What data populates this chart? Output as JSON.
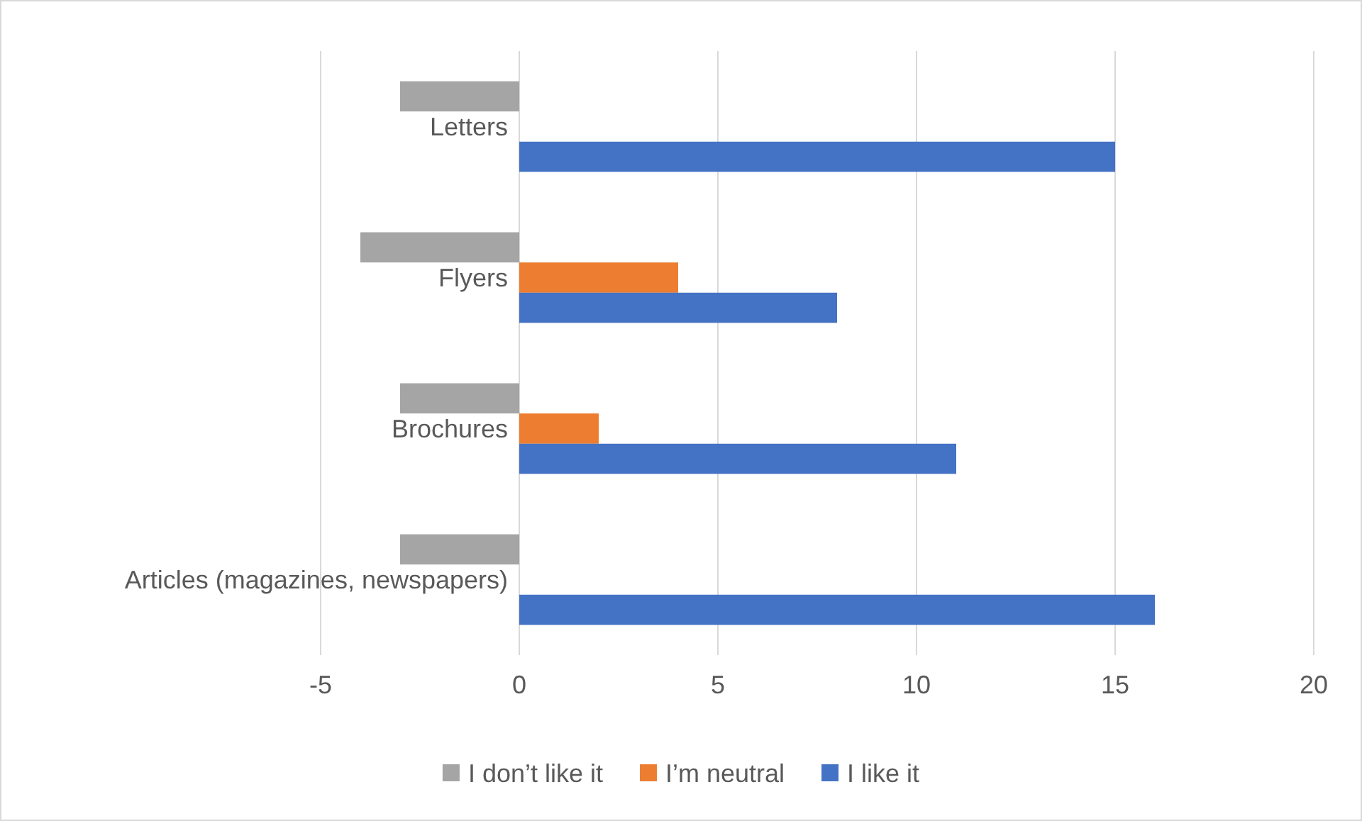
{
  "chart_data": {
    "type": "bar",
    "orientation": "horizontal",
    "categories": [
      "Letters",
      "Flyers",
      "Brochures",
      "Articles (magazines, newspapers)"
    ],
    "series": [
      {
        "name": "I don’t like it",
        "color": "#a5a5a5",
        "values": [
          -3,
          -4,
          -3,
          -3
        ]
      },
      {
        "name": "I’m neutral",
        "color": "#ed7d31",
        "values": [
          null,
          4,
          2,
          null
        ]
      },
      {
        "name": "I like it",
        "color": "#4472c4",
        "values": [
          15,
          8,
          11,
          16
        ]
      }
    ],
    "xlim": [
      -5,
      20
    ],
    "xticks": [
      -5,
      0,
      5,
      10,
      15,
      20
    ],
    "grid": "x",
    "legend": "bottom"
  }
}
